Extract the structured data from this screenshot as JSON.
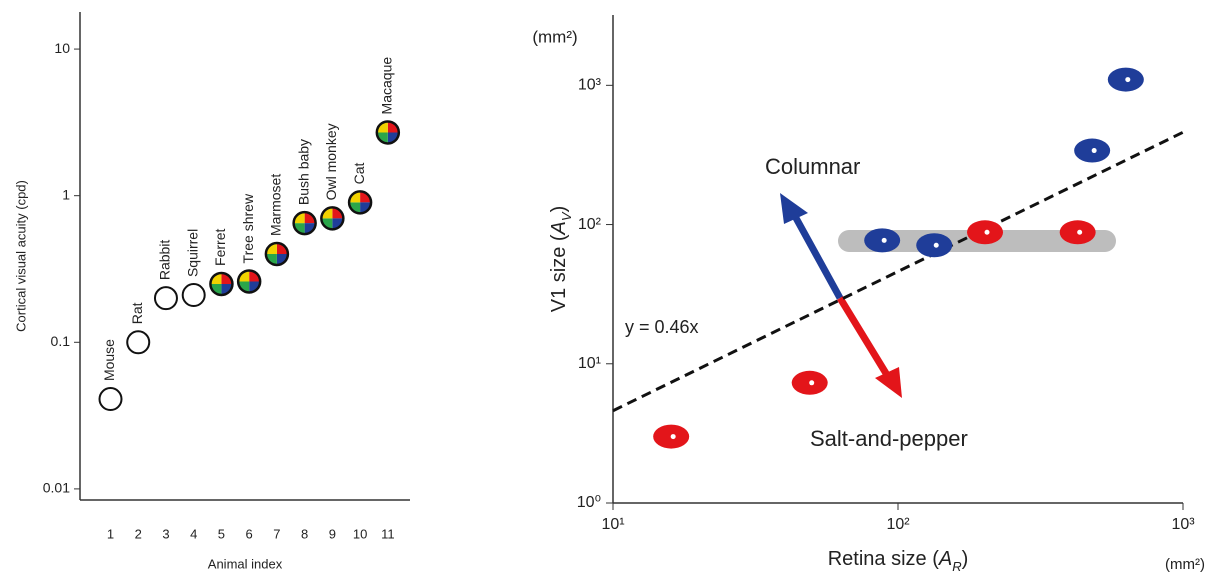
{
  "chart_data": [
    {
      "type": "scatter",
      "ylog": true,
      "x": [
        1,
        2,
        3,
        4,
        5,
        6,
        7,
        8,
        9,
        10,
        11
      ],
      "values": [
        0.041,
        0.1,
        0.2,
        0.21,
        0.25,
        0.26,
        0.4,
        0.65,
        0.7,
        0.9,
        2.7
      ],
      "point_labels": [
        "Mouse",
        "Rat",
        "Rabbit",
        "Squirrel",
        "Ferret",
        "Tree shrew",
        "Marmoset",
        "Bush baby",
        "Owl monkey",
        "Cat",
        "Macaque"
      ],
      "filled": [
        false,
        false,
        false,
        false,
        true,
        true,
        true,
        true,
        true,
        true,
        true
      ],
      "quadrant_colors": [
        "#e3151a",
        "#1f3d99",
        "#2aa64a",
        "#f2d200"
      ],
      "xlim": [
        -0.1,
        11.8
      ],
      "xticks": [
        1,
        2,
        3,
        4,
        5,
        6,
        7,
        8,
        9,
        10,
        11
      ],
      "ylim": [
        0.0084,
        17.9
      ],
      "yticks": [
        0.01,
        0.1,
        1,
        10
      ],
      "xlabel": "Animal index",
      "ylabel": "Cortical visual acuity (cpd)"
    },
    {
      "type": "scatter",
      "xlog": true,
      "ylog": true,
      "series": [
        {
          "color": "#1f3d99",
          "x": [
            88,
            134,
            480,
            630
          ],
          "values": [
            77,
            71,
            340,
            1100
          ]
        },
        {
          "color": "#e3151a",
          "x": [
            16,
            49,
            202,
            427
          ],
          "values": [
            3.0,
            7.3,
            88,
            88
          ]
        }
      ],
      "xlim": [
        10,
        1000
      ],
      "xticks": [
        {
          "value": 10,
          "label": "10¹"
        },
        {
          "value": 100,
          "label": "10²"
        },
        {
          "value": 1000,
          "label": "10³"
        }
      ],
      "ylim": [
        1,
        3200
      ],
      "yticks": [
        {
          "value": 1,
          "label": "10⁰"
        },
        {
          "value": 10,
          "label": "10¹"
        },
        {
          "value": 100,
          "label": "10²"
        },
        {
          "value": 1000,
          "label": "10³"
        }
      ],
      "xlabel": [
        "Retina size (",
        "A",
        "R",
        ")"
      ],
      "ylabel": [
        "V1 size (",
        "A",
        "V",
        ")"
      ],
      "unit_label": "(mm²)",
      "fit": {
        "label": "y = 0.46x",
        "slope": 0.46
      },
      "annotations": [
        {
          "text": "Columnar",
          "color": "#1f3d99"
        },
        {
          "text": "Salt-and-pepper",
          "color": "#e3151a"
        }
      ]
    }
  ]
}
